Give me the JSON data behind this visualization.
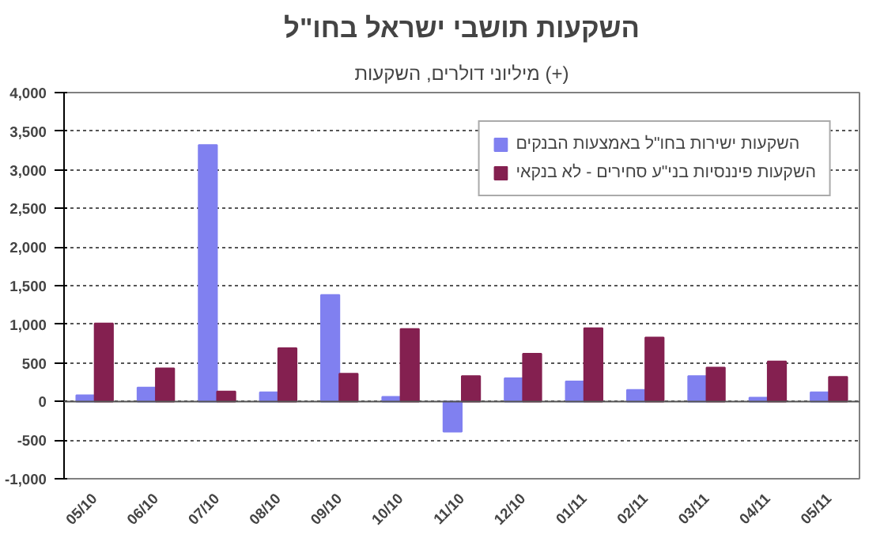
{
  "chart_data": {
    "type": "bar",
    "title": "השקעות תושבי ישראל בחו\"ל",
    "subtitle": "מיליוני דולרים, השקעות (+)",
    "categories": [
      "05/10",
      "06/10",
      "07/10",
      "08/10",
      "09/10",
      "10/10",
      "11/10",
      "12/10",
      "01/11",
      "02/11",
      "03/11",
      "04/11",
      "05/11"
    ],
    "series": [
      {
        "name": "השקעות ישירות בחו\"ל באמצעות הבנקים",
        "color": "#8080f0",
        "values": [
          80,
          180,
          3320,
          120,
          1380,
          60,
          -390,
          300,
          260,
          150,
          330,
          50,
          120
        ]
      },
      {
        "name": "השקעות פיננסיות בני\"ע סחירים - לא בנקאי",
        "color": "#842050",
        "values": [
          1010,
          430,
          130,
          690,
          360,
          940,
          330,
          620,
          950,
          830,
          440,
          520,
          320
        ]
      }
    ],
    "ylim": [
      -1000,
      4000
    ],
    "yticks": [
      {
        "value": -1000,
        "label": "-1,000"
      },
      -500,
      0,
      500,
      {
        "value": 1000,
        "label": "1,000"
      },
      {
        "value": 1500,
        "label": "1,500"
      },
      {
        "value": 2000,
        "label": "2,000"
      },
      {
        "value": 2500,
        "label": "2,500"
      },
      {
        "value": 3000,
        "label": "3,000"
      },
      {
        "value": 3500,
        "label": "3,500"
      },
      {
        "value": 4000,
        "label": "4,000"
      }
    ],
    "grid": "y",
    "legend": "top right"
  }
}
